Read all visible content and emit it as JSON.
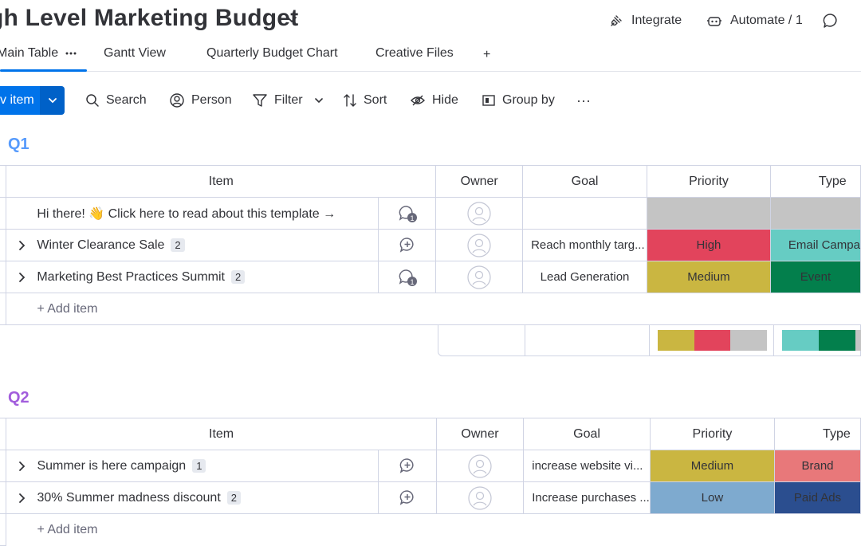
{
  "header": {
    "title": "gh Level Marketing Budget",
    "integrate_label": "Integrate",
    "automate_label": "Automate / 1"
  },
  "tabs": [
    {
      "label": "Main Table",
      "active": true
    },
    {
      "label": "Gantt View"
    },
    {
      "label": "Quarterly Budget Chart"
    },
    {
      "label": "Creative Files"
    },
    {
      "label": "+"
    }
  ],
  "toolbar": {
    "new_item_label": "v item",
    "search_label": "Search",
    "person_label": "Person",
    "filter_label": "Filter",
    "sort_label": "Sort",
    "hide_label": "Hide",
    "group_by_label": "Group by",
    "more_label": "···"
  },
  "columns": {
    "item": "Item",
    "owner": "Owner",
    "goal": "Goal",
    "priority": "Priority",
    "type": "Type"
  },
  "colors": {
    "accent": "#0073ea",
    "q1": "#579bfc",
    "q2": "#a25ddc",
    "high": "#e2445c",
    "medium": "#cab641",
    "low": "#7eaacf",
    "grey": "#c4c4c4",
    "email": "#66ccc3",
    "event": "#037f4c",
    "brand": "#e8787a",
    "paid_ads": "#2b4e8f"
  },
  "groups": [
    {
      "title": "Q1",
      "rows": [
        {
          "item": "Hi there! 👋 Click here to read about this template →",
          "count": "",
          "updates": "1",
          "goal": "",
          "priority": "",
          "type": ""
        },
        {
          "item": "Winter Clearance Sale",
          "count": "2",
          "updates": "",
          "goal": "Reach monthly targ...",
          "priority": "High",
          "type": "Email Campa"
        },
        {
          "item": "Marketing Best Practices Summit",
          "count": "2",
          "updates": "1",
          "goal": "Lead Generation",
          "priority": "Medium",
          "type": "Event"
        }
      ],
      "add_item": "+ Add item"
    },
    {
      "title": "Q2",
      "rows": [
        {
          "item": "Summer is here campaign",
          "count": "1",
          "updates": "",
          "goal": "increase website vi...",
          "priority": "Medium",
          "type": "Brand"
        },
        {
          "item": "30% Summer madness discount",
          "count": "2",
          "updates": "",
          "goal": "Increase purchases ...",
          "priority": "Low",
          "type": "Paid Ads"
        }
      ],
      "add_item": "+ Add item"
    }
  ]
}
